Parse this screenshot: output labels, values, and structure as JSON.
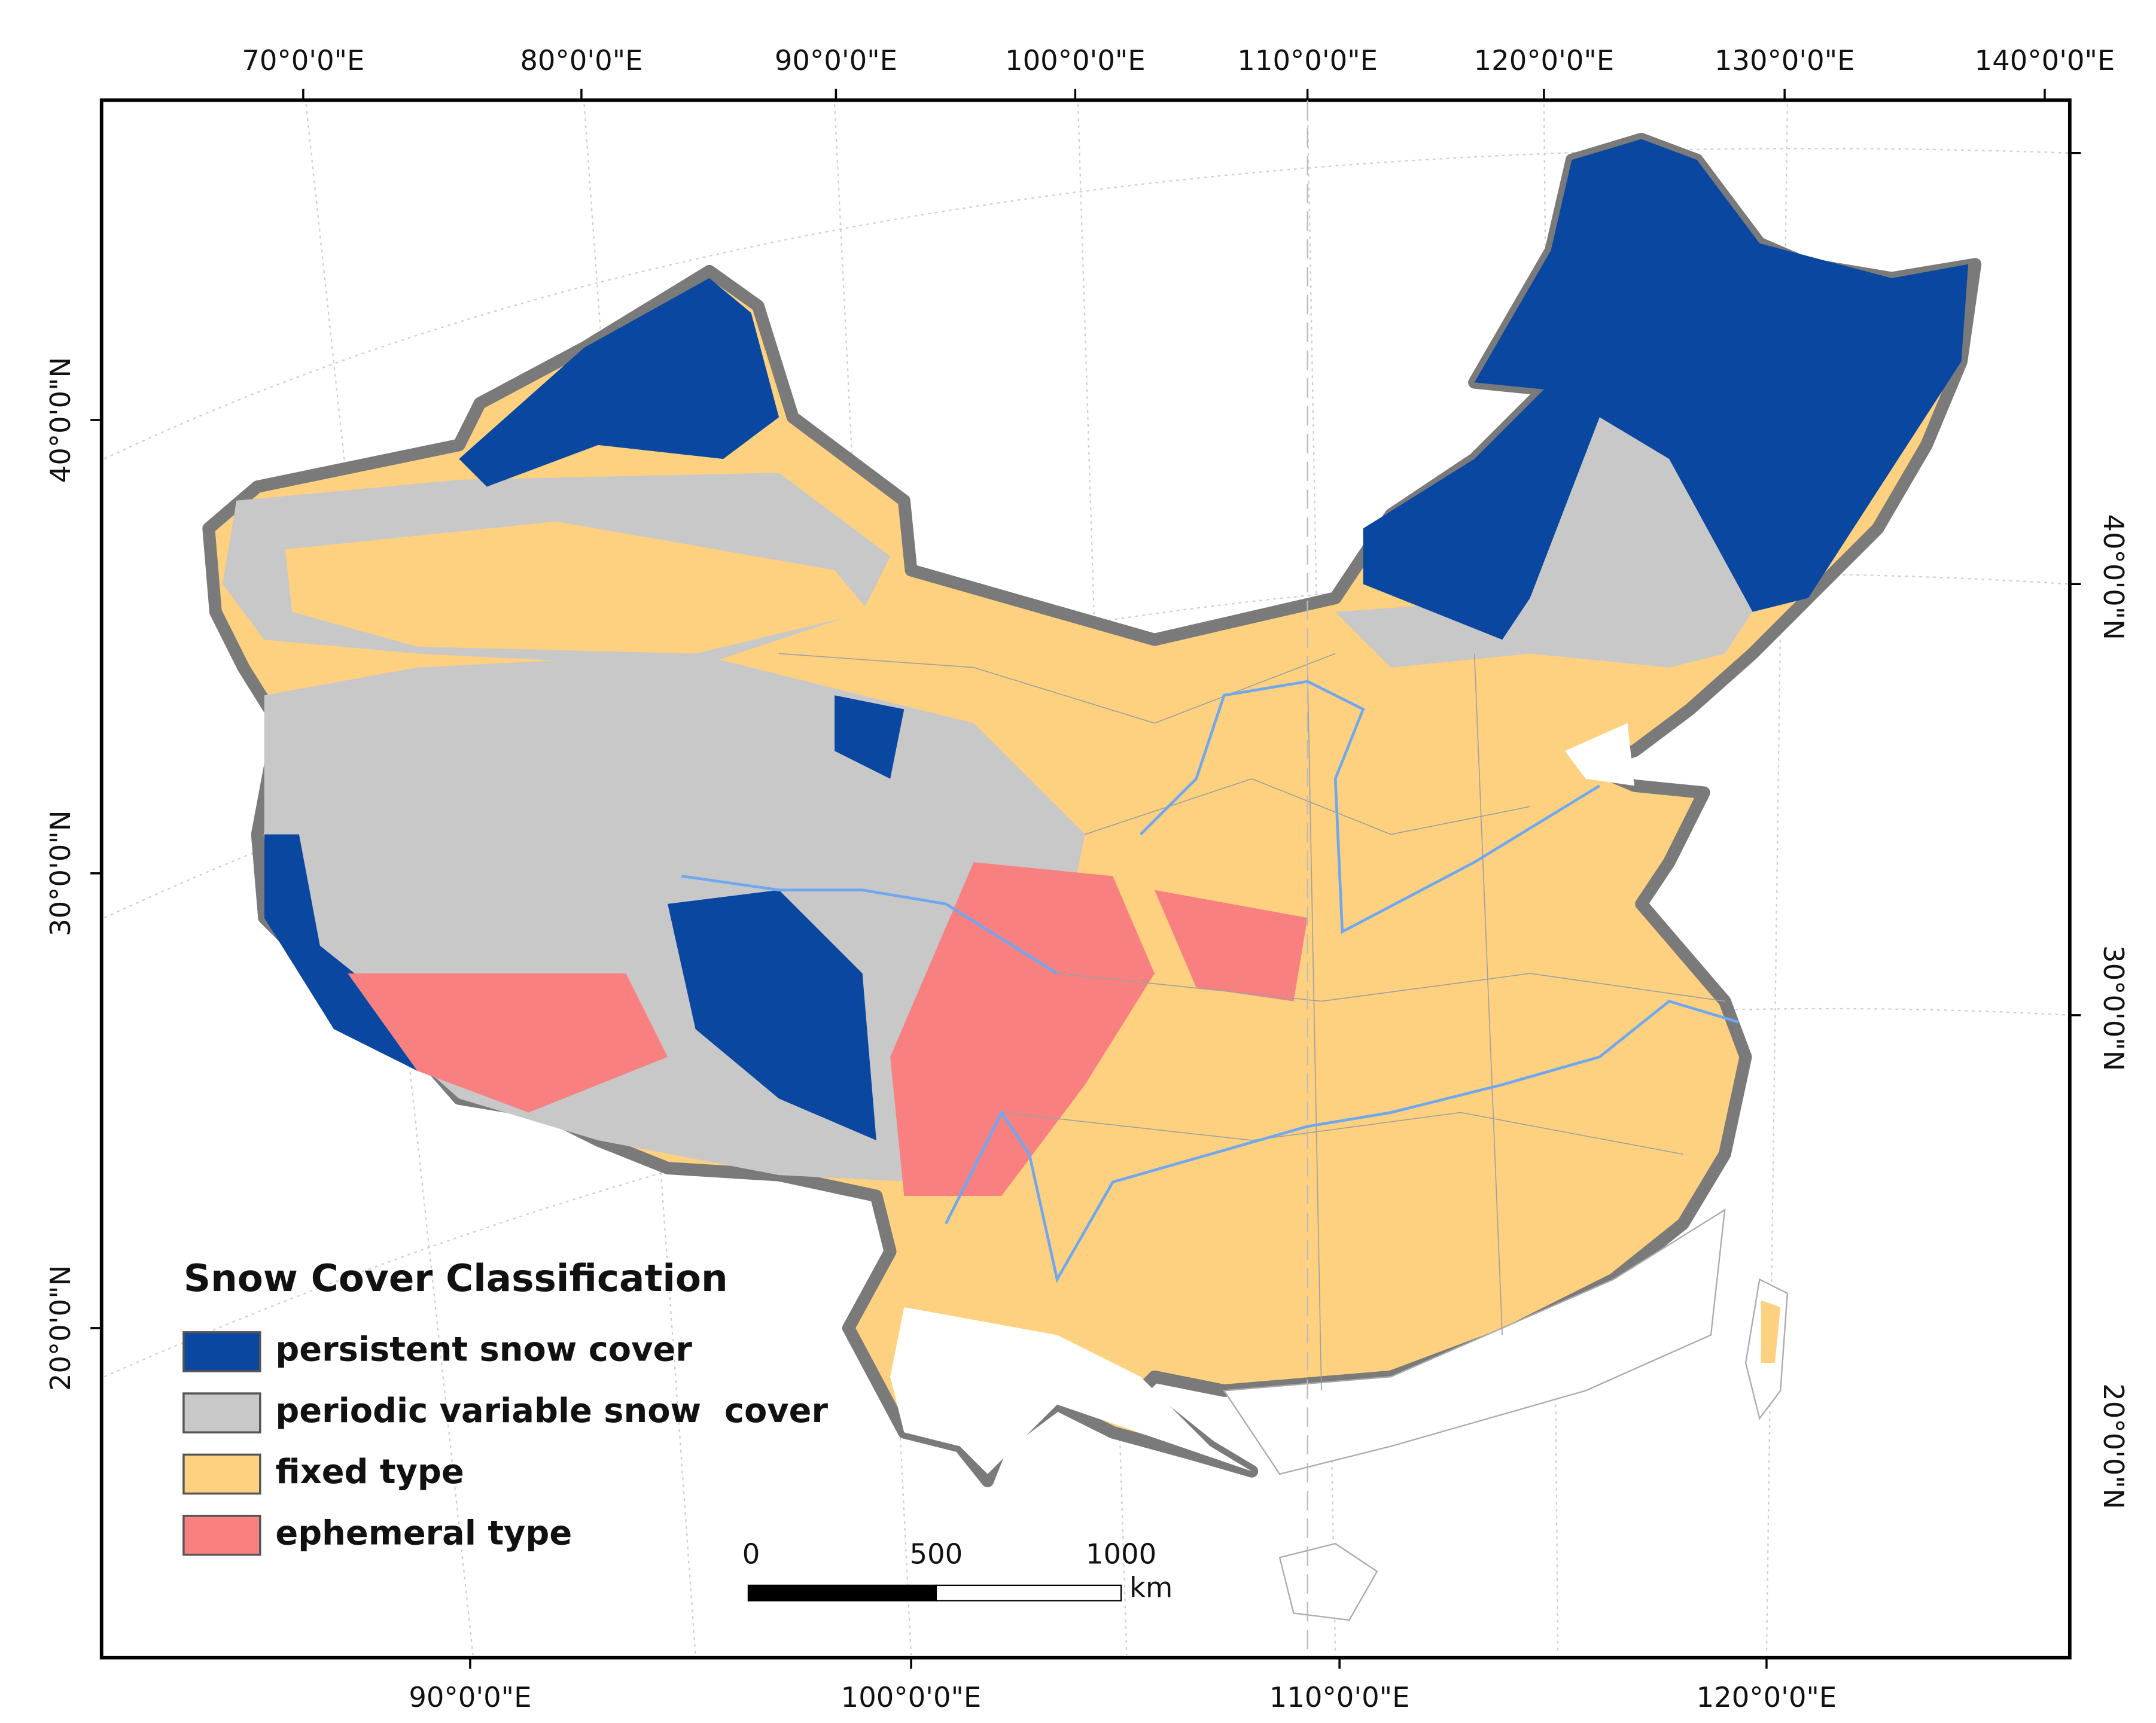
{
  "map": {
    "top_labels": [
      "70°0'0\"E",
      "80°0'0\"E",
      "90°0'0\"E",
      "100°0'0\"E",
      "110°0'0\"E",
      "120°0'0\"E",
      "130°0'0\"E",
      "140°0'0\"E"
    ],
    "bottom_labels": [
      "90°0'0\"E",
      "100°0'0\"E",
      "110°0'0\"E",
      "120°0'0\"E"
    ],
    "left_labels": [
      "40°0'0\"N",
      "30°0'0\"N",
      "20°0'0\"N"
    ],
    "right_labels": [
      "40°0'0\"N",
      "30°0'0\"N",
      "20°0'0\"N"
    ]
  },
  "legend": {
    "title": "Snow Cover Classification",
    "items": [
      {
        "label": "persistent snow cover",
        "color": "#0a47a0"
      },
      {
        "label": "periodic variable snow  cover",
        "color": "#c8c8c8"
      },
      {
        "label": "fixed type",
        "color": "#fdd17f"
      },
      {
        "label": "ephemeral type",
        "color": "#f88080"
      }
    ]
  },
  "scale_bar": {
    "labels": [
      "0",
      "500",
      "1000"
    ],
    "unit": "km"
  }
}
